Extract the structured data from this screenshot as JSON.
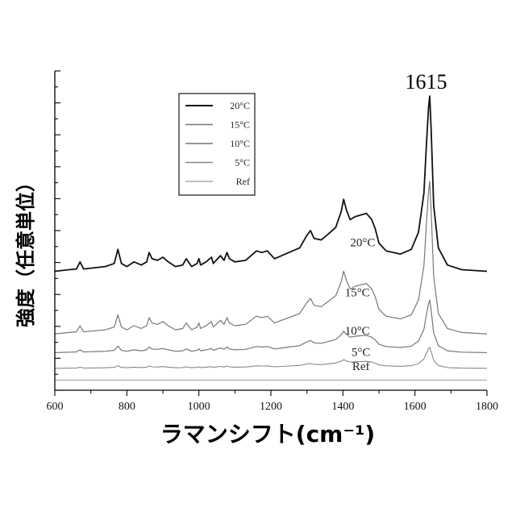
{
  "chart_data": {
    "type": "line",
    "xlabel": "ラマンシフト(cm⁻¹)",
    "ylabel": "強度（任意単位）",
    "xlim": [
      600,
      1800
    ],
    "xticks": [
      600,
      800,
      1000,
      1200,
      1400,
      1600,
      1800
    ],
    "ytick_labels_shown": false,
    "grid": false,
    "legend_position": "top-left",
    "peak_annotation": {
      "text": "1615",
      "x": 1640
    },
    "series": [
      {
        "name": "20°C",
        "color": "#111111",
        "stroke": 1.8,
        "baseline": 7.6,
        "scale": 1.0,
        "label": "20°C",
        "label_x": 1455,
        "label_y": 9.2,
        "x": [
          600,
          640,
          660,
          670,
          680,
          700,
          740,
          765,
          775,
          785,
          800,
          820,
          840,
          855,
          862,
          870,
          885,
          900,
          915,
          935,
          955,
          965,
          980,
          995,
          1000,
          1005,
          1020,
          1035,
          1040,
          1048,
          1060,
          1070,
          1078,
          1085,
          1100,
          1130,
          1160,
          1175,
          1190,
          1210,
          1230,
          1250,
          1280,
          1300,
          1310,
          1320,
          1340,
          1360,
          1380,
          1395,
          1402,
          1410,
          1420,
          1435,
          1450,
          1465,
          1480,
          1490,
          1500,
          1520,
          1560,
          1590,
          1610,
          1625,
          1632,
          1638,
          1641,
          1645,
          1652,
          1665,
          1690,
          1730,
          1800
        ],
        "y": [
          0.0,
          0.1,
          0.15,
          0.6,
          0.15,
          0.2,
          0.3,
          0.5,
          1.4,
          0.5,
          0.3,
          0.6,
          0.4,
          0.6,
          1.2,
          0.8,
          0.7,
          0.9,
          0.6,
          0.3,
          0.4,
          0.8,
          0.3,
          0.5,
          0.8,
          0.4,
          0.6,
          0.9,
          0.5,
          0.7,
          1.0,
          0.7,
          1.2,
          0.8,
          0.6,
          0.7,
          1.3,
          1.2,
          1.3,
          0.8,
          1.0,
          1.2,
          1.5,
          2.3,
          2.6,
          2.1,
          2.0,
          2.4,
          2.8,
          3.8,
          4.6,
          3.9,
          3.3,
          3.5,
          3.6,
          3.7,
          3.3,
          2.7,
          1.8,
          1.3,
          1.1,
          1.4,
          2.5,
          5.0,
          8.2,
          10.5,
          11.2,
          9.0,
          4.2,
          1.5,
          0.4,
          0.1,
          0.0
        ]
      },
      {
        "name": "15°C",
        "color": "#777777",
        "stroke": 1.2,
        "baseline": 3.6,
        "scale": 0.87,
        "label": "15°C",
        "label_x": 1440,
        "label_y": 6.0,
        "x": [
          600,
          640,
          660,
          670,
          680,
          700,
          740,
          765,
          775,
          785,
          800,
          820,
          840,
          855,
          862,
          870,
          885,
          900,
          915,
          935,
          955,
          965,
          980,
          995,
          1000,
          1005,
          1020,
          1035,
          1040,
          1048,
          1060,
          1070,
          1078,
          1085,
          1100,
          1130,
          1160,
          1175,
          1190,
          1210,
          1230,
          1250,
          1280,
          1300,
          1310,
          1320,
          1340,
          1360,
          1380,
          1395,
          1402,
          1410,
          1420,
          1435,
          1450,
          1465,
          1480,
          1490,
          1500,
          1520,
          1560,
          1590,
          1610,
          1625,
          1632,
          1638,
          1641,
          1645,
          1652,
          1665,
          1690,
          1730,
          1800
        ],
        "y": [
          0.0,
          0.1,
          0.15,
          0.6,
          0.15,
          0.2,
          0.3,
          0.5,
          1.4,
          0.5,
          0.3,
          0.6,
          0.4,
          0.6,
          1.2,
          0.8,
          0.7,
          0.9,
          0.6,
          0.3,
          0.4,
          0.8,
          0.3,
          0.5,
          0.8,
          0.4,
          0.6,
          0.9,
          0.5,
          0.7,
          1.0,
          0.7,
          1.2,
          0.8,
          0.6,
          0.7,
          1.3,
          1.2,
          1.3,
          0.8,
          1.0,
          1.2,
          1.5,
          2.3,
          2.6,
          2.1,
          2.0,
          2.4,
          2.8,
          3.8,
          4.6,
          3.9,
          3.3,
          3.5,
          3.6,
          3.7,
          3.3,
          2.7,
          1.8,
          1.3,
          1.1,
          1.4,
          2.5,
          5.0,
          8.2,
          10.5,
          11.2,
          9.0,
          4.2,
          1.5,
          0.4,
          0.1,
          0.0
        ]
      },
      {
        "name": "10°C",
        "color": "#777777",
        "stroke": 1.2,
        "baseline": 2.4,
        "scale": 0.3,
        "label": "10°C",
        "label_x": 1440,
        "label_y": 3.55,
        "x": [
          600,
          640,
          660,
          670,
          680,
          700,
          740,
          765,
          775,
          785,
          800,
          820,
          840,
          855,
          862,
          870,
          885,
          900,
          915,
          935,
          955,
          965,
          980,
          995,
          1000,
          1005,
          1020,
          1035,
          1040,
          1048,
          1060,
          1070,
          1078,
          1085,
          1100,
          1130,
          1160,
          1175,
          1190,
          1210,
          1230,
          1250,
          1280,
          1300,
          1310,
          1320,
          1340,
          1360,
          1380,
          1395,
          1402,
          1410,
          1420,
          1435,
          1450,
          1465,
          1480,
          1490,
          1500,
          1520,
          1560,
          1590,
          1610,
          1625,
          1632,
          1638,
          1641,
          1645,
          1652,
          1665,
          1690,
          1730,
          1800
        ],
        "y": [
          0.0,
          0.1,
          0.15,
          0.6,
          0.15,
          0.2,
          0.3,
          0.5,
          1.4,
          0.5,
          0.3,
          0.6,
          0.4,
          0.6,
          1.2,
          0.8,
          0.7,
          0.9,
          0.6,
          0.3,
          0.4,
          0.8,
          0.3,
          0.5,
          0.8,
          0.4,
          0.6,
          0.9,
          0.5,
          0.7,
          1.0,
          0.7,
          1.2,
          0.8,
          0.6,
          0.7,
          1.3,
          1.2,
          1.3,
          0.8,
          1.0,
          1.2,
          1.5,
          2.3,
          2.6,
          2.1,
          2.0,
          2.4,
          2.8,
          3.8,
          4.6,
          3.9,
          3.3,
          3.5,
          3.6,
          3.7,
          3.3,
          2.7,
          1.8,
          1.3,
          1.1,
          1.4,
          2.5,
          5.0,
          8.2,
          10.5,
          11.2,
          9.0,
          4.2,
          1.5,
          0.4,
          0.1,
          0.0
        ]
      },
      {
        "name": "5°C",
        "color": "#888888",
        "stroke": 1.1,
        "baseline": 1.4,
        "scale": 0.12,
        "label": "5°C",
        "label_x": 1450,
        "label_y": 2.2,
        "x": [
          600,
          640,
          660,
          670,
          680,
          700,
          740,
          765,
          775,
          785,
          800,
          820,
          840,
          855,
          862,
          870,
          885,
          900,
          915,
          935,
          955,
          965,
          980,
          995,
          1000,
          1005,
          1020,
          1035,
          1040,
          1048,
          1060,
          1070,
          1078,
          1085,
          1100,
          1130,
          1160,
          1175,
          1190,
          1210,
          1230,
          1250,
          1280,
          1300,
          1310,
          1320,
          1340,
          1360,
          1380,
          1395,
          1402,
          1410,
          1420,
          1435,
          1450,
          1465,
          1480,
          1490,
          1500,
          1520,
          1560,
          1590,
          1610,
          1625,
          1632,
          1638,
          1641,
          1645,
          1652,
          1665,
          1690,
          1730,
          1800
        ],
        "y": [
          0.0,
          0.1,
          0.15,
          0.6,
          0.15,
          0.2,
          0.3,
          0.5,
          1.4,
          0.5,
          0.3,
          0.6,
          0.4,
          0.6,
          1.2,
          0.8,
          0.7,
          0.9,
          0.6,
          0.3,
          0.4,
          0.8,
          0.3,
          0.5,
          0.8,
          0.4,
          0.6,
          0.9,
          0.5,
          0.7,
          1.0,
          0.7,
          1.2,
          0.8,
          0.6,
          0.7,
          1.3,
          1.2,
          1.3,
          0.8,
          1.0,
          1.2,
          1.5,
          2.3,
          2.6,
          2.1,
          2.0,
          2.4,
          2.8,
          3.8,
          4.6,
          3.9,
          3.3,
          3.5,
          3.6,
          3.7,
          3.3,
          2.7,
          1.8,
          1.3,
          1.1,
          1.4,
          2.5,
          5.0,
          8.2,
          10.5,
          11.2,
          9.0,
          4.2,
          1.5,
          0.4,
          0.1,
          0.0
        ]
      },
      {
        "name": "Ref",
        "color": "#999999",
        "stroke": 1.0,
        "baseline": 0.65,
        "scale": 0.0,
        "label": "Ref",
        "label_x": 1450,
        "label_y": 1.3,
        "x": [
          600,
          1800
        ],
        "y": [
          0.0,
          0.0
        ]
      }
    ],
    "y_range": [
      0,
      20.4
    ]
  }
}
